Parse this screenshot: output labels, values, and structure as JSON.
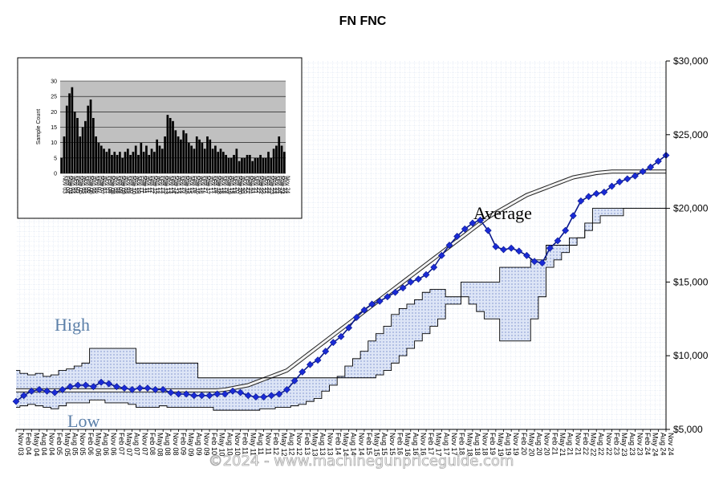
{
  "chart_data": [
    {
      "type": "line",
      "title": "FN FNC",
      "ylim": [
        5000,
        30000
      ],
      "y_ticks": [
        "$5,000",
        "$10,000",
        "$15,000",
        "$20,000",
        "$25,000",
        "$30,000"
      ],
      "y_tick_values": [
        5000,
        10000,
        15000,
        20000,
        25000,
        30000
      ],
      "x_ticks": [
        "Nov 03",
        "Feb 04",
        "May 04",
        "Aug 04",
        "Nov 04",
        "Feb 05",
        "May 05",
        "Aug 05",
        "Nov 05",
        "Feb 06",
        "May 06",
        "Aug 06",
        "Nov 06",
        "Feb 07",
        "May 07",
        "Aug 07",
        "Nov 07",
        "Feb 08",
        "May 08",
        "Aug 08",
        "Nov 08",
        "Feb 09",
        "May 09",
        "Aug 09",
        "Nov 09",
        "Feb 10",
        "May 10",
        "Aug 10",
        "Nov 10",
        "Feb 11",
        "May 11",
        "Aug 11",
        "Nov 11",
        "Feb 12",
        "May 12",
        "Aug 12",
        "Nov 12",
        "Feb 13",
        "May 13",
        "Aug 13",
        "Nov 13",
        "Feb 14",
        "May 14",
        "Aug 14",
        "Nov 14",
        "Feb 15",
        "May 15",
        "Aug 15",
        "Nov 15",
        "Feb 16",
        "May 16",
        "Aug 16",
        "Nov 16",
        "Feb 17",
        "May 17",
        "Aug 17",
        "Nov 17",
        "Feb 18",
        "May 18",
        "Aug 18",
        "Nov 18",
        "Feb 19",
        "May 19",
        "Aug 19",
        "Nov 19",
        "Feb 20",
        "May 20",
        "Aug 20",
        "Nov 20",
        "Feb 21",
        "May 21",
        "Aug 21",
        "Nov 21",
        "Feb 22",
        "May 22",
        "Aug 22",
        "Nov 22",
        "Feb 23",
        "May 23",
        "Aug 23",
        "Nov 23",
        "Feb 24",
        "May 24",
        "Aug 24",
        "Nov 24"
      ],
      "annotations": [
        "High",
        "Average",
        "Low"
      ],
      "series": [
        {
          "name": "High",
          "values": [
            9000,
            8800,
            8700,
            8800,
            8600,
            8700,
            9000,
            9100,
            9300,
            9500,
            10500,
            10500,
            10500,
            10500,
            10500,
            10500,
            9500,
            9500,
            9500,
            9500,
            9500,
            9500,
            9500,
            9500,
            8500,
            8500,
            8500,
            8500,
            8500,
            8500,
            8500,
            8500,
            8500,
            8500,
            8500,
            8500,
            8500,
            8500,
            8500,
            8500,
            8500,
            8500,
            8500,
            8500,
            8500,
            8500,
            8500,
            8700,
            9000,
            9500,
            10000,
            10500,
            11000,
            11500,
            12000,
            12500,
            13500,
            13500,
            15000,
            15000,
            15000,
            15000,
            15000,
            16000,
            16000,
            16000,
            16000,
            16500,
            16500,
            17500,
            17500,
            17500,
            18000,
            18000,
            19000,
            20000,
            20000,
            20000,
            20000,
            20000,
            20000,
            20000,
            20000,
            20000,
            20000
          ]
        },
        {
          "name": "Low",
          "values": [
            6500,
            6600,
            6700,
            6600,
            6500,
            6400,
            6600,
            6800,
            6800,
            6800,
            7000,
            7000,
            6800,
            6800,
            6800,
            6700,
            6500,
            6500,
            6500,
            6600,
            6500,
            6500,
            6500,
            6500,
            6500,
            6500,
            6300,
            6300,
            6300,
            6300,
            6300,
            6300,
            6400,
            6400,
            6500,
            6500,
            6600,
            6700,
            6900,
            7100,
            7600,
            8000,
            8600,
            9300,
            9800,
            10300,
            11000,
            11500,
            12000,
            12800,
            13200,
            13500,
            13800,
            14300,
            14500,
            14500,
            14000,
            14000,
            14000,
            13500,
            13000,
            12500,
            12500,
            11000,
            11000,
            11000,
            11000,
            12500,
            14000,
            16000,
            16500,
            17000,
            17500,
            18000,
            18500,
            19000,
            19500,
            19500,
            19500,
            20000,
            20000,
            20000,
            20000,
            20000,
            20000
          ]
        },
        {
          "name": "Average",
          "values": [
            6900,
            7300,
            7600,
            7700,
            7600,
            7500,
            7700,
            7900,
            8000,
            8000,
            7900,
            8200,
            8100,
            7900,
            7800,
            7700,
            7800,
            7800,
            7700,
            7700,
            7500,
            7400,
            7400,
            7300,
            7300,
            7300,
            7400,
            7400,
            7600,
            7500,
            7300,
            7200,
            7200,
            7300,
            7400,
            7700,
            8300,
            8900,
            9400,
            9700,
            10300,
            10900,
            11300,
            11900,
            12600,
            13100,
            13500,
            13700,
            14000,
            14300,
            14600,
            15000,
            15200,
            15500,
            16000,
            16800,
            17500,
            18100,
            18600,
            19000,
            19200,
            18500,
            17400,
            17200,
            17300,
            17100,
            16800,
            16400,
            16300,
            17300,
            17800,
            18500,
            19500,
            20500,
            20800,
            21000,
            21100,
            21500,
            21800,
            22000,
            22200,
            22500,
            22800,
            23200,
            23600
          ]
        },
        {
          "name": "Trend",
          "values": [
            7650,
            7650,
            7650,
            7650,
            7650,
            7650,
            7650,
            7650,
            7650,
            7650,
            7650,
            7650,
            7650,
            7650,
            7650,
            7650,
            7650,
            7650,
            7650,
            7650,
            7650,
            7650,
            7650,
            7650,
            7650,
            7650,
            7650,
            7700,
            7800,
            7900,
            8000,
            8200,
            8400,
            8600,
            8800,
            9000,
            9400,
            9800,
            10200,
            10600,
            11000,
            11400,
            11800,
            12200,
            12600,
            13000,
            13400,
            13800,
            14200,
            14600,
            15000,
            15400,
            15800,
            16200,
            16600,
            17000,
            17400,
            17800,
            18200,
            18600,
            19000,
            19400,
            19700,
            20000,
            20300,
            20600,
            20900,
            21100,
            21300,
            21500,
            21700,
            21900,
            22100,
            22200,
            22300,
            22400,
            22450,
            22500,
            22500,
            22500,
            22500,
            22500,
            22500,
            22500,
            22500
          ]
        }
      ]
    },
    {
      "type": "bar",
      "ylabel": "Sample Count",
      "ylim": [
        0,
        30
      ],
      "y_ticks": [
        "0",
        "5",
        "10",
        "15",
        "20",
        "25",
        "30"
      ],
      "x_ticks": [
        "Nov 03",
        "Feb 04",
        "May 04",
        "Aug 04",
        "Nov 04",
        "Feb 05",
        "May 05",
        "Aug 05",
        "Nov 05",
        "Feb 06",
        "May 06",
        "Aug 06",
        "Nov 06",
        "Feb 07",
        "May 07",
        "Aug 07",
        "Nov 07",
        "Feb 08",
        "May 08",
        "Aug 08",
        "Nov 08",
        "Feb 09",
        "May 09",
        "Aug 09",
        "Nov 09",
        "Feb 10",
        "May 10",
        "Aug 10",
        "Nov 10",
        "Feb 11",
        "May 11",
        "Aug 11",
        "Nov 11",
        "Feb 12",
        "May 12",
        "Aug 12",
        "Nov 12",
        "Feb 13",
        "May 13",
        "Aug 13",
        "Nov 13",
        "Feb 14",
        "May 14",
        "Aug 14",
        "Nov 14",
        "Feb 15",
        "May 15",
        "Aug 15",
        "Nov 15",
        "Feb 16",
        "May 16",
        "Aug 16",
        "Nov 16",
        "Feb 17",
        "May 17",
        "Aug 17",
        "Nov 17",
        "Feb 18",
        "May 18",
        "Aug 18",
        "Nov 18",
        "Feb 19",
        "May 19",
        "Aug 19",
        "Nov 19",
        "Feb 20",
        "May 20",
        "Aug 20",
        "Nov 20",
        "Feb 21",
        "May 21",
        "Aug 21",
        "Nov 21",
        "Feb 22",
        "May 22",
        "Aug 22",
        "Nov 22",
        "Feb 23",
        "May 23",
        "Aug 23",
        "Nov 23",
        "Feb 24",
        "May 24",
        "Aug 24",
        "Nov 24"
      ],
      "values": [
        5,
        12,
        22,
        26,
        28,
        20,
        18,
        12,
        15,
        17,
        22,
        24,
        18,
        12,
        10,
        9,
        8,
        7,
        8,
        6,
        7,
        6,
        7,
        5,
        7,
        8,
        6,
        7,
        9,
        6,
        10,
        7,
        9,
        6,
        8,
        7,
        11,
        9,
        8,
        12,
        19,
        18,
        17,
        14,
        12,
        11,
        14,
        13,
        10,
        9,
        8,
        12,
        11,
        10,
        8,
        12,
        11,
        8,
        9,
        7,
        8,
        7,
        6,
        5,
        5,
        6,
        8,
        4,
        5,
        5,
        6,
        6,
        4,
        5,
        5,
        6,
        5,
        5,
        7,
        5,
        8,
        9,
        12,
        9,
        7
      ]
    }
  ],
  "labels": {
    "high": "High",
    "average": "Average",
    "low": "Low"
  },
  "watermark": "©2024 - www.machinegunpriceguide.com",
  "colors": {
    "marker": "#1a2bd6",
    "grid_fill": "#e6eef8",
    "grid_line": "#9bb3d6",
    "band_fill": "#dfe7f7",
    "label_high": "#5b7fa8",
    "label_avg": "#000000",
    "label_low": "#5b7fa8",
    "inset_bg": "#c0c0c0"
  }
}
